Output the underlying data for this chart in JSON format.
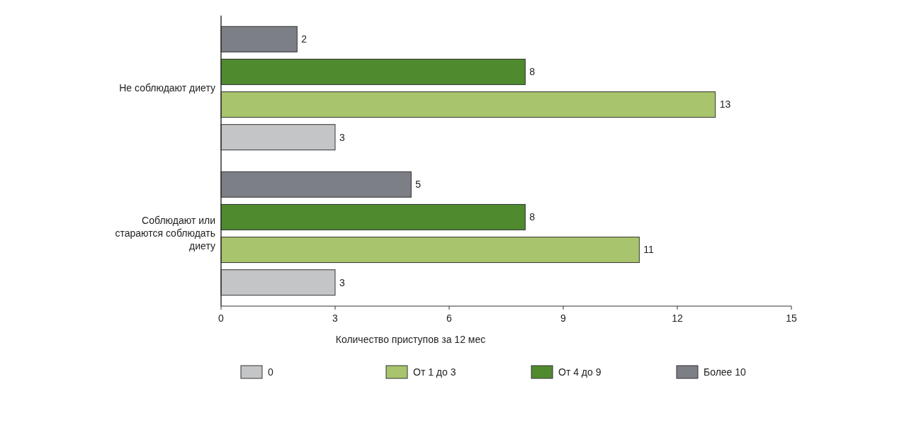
{
  "chart_data": {
    "type": "bar",
    "orientation": "horizontal",
    "categories": [
      "Не соблюдают диету",
      "Соблюдают или стараются соблюдать диету"
    ],
    "series": [
      {
        "name": "0",
        "color": "#c4c5c7",
        "values": [
          3,
          3
        ]
      },
      {
        "name": "От 1 до 3",
        "color": "#a8c46c",
        "values": [
          13,
          11
        ]
      },
      {
        "name": "От 4 до 9",
        "color": "#4f8a2e",
        "values": [
          8,
          8
        ]
      },
      {
        "name": "Более 10",
        "color": "#7d7f86",
        "values": [
          2,
          5
        ]
      }
    ],
    "xlim": [
      0,
      15
    ],
    "xticks": [
      0,
      3,
      6,
      9,
      12,
      15
    ],
    "xlabel": "Количество приступов за 12 мес",
    "data_labels": true,
    "legend": "bottom",
    "grid": false
  }
}
